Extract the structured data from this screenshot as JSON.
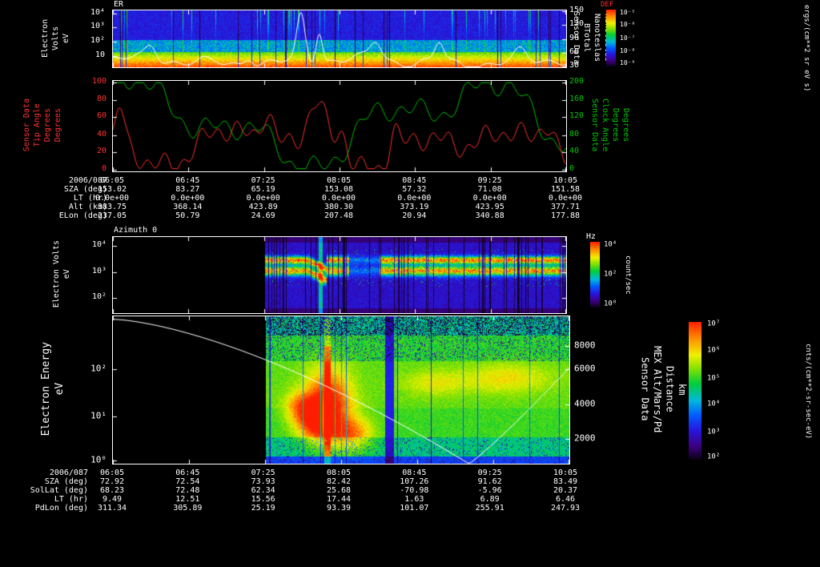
{
  "panels": {
    "er": {
      "title": "ER",
      "left_axis": {
        "label": "Electron Volts\neV",
        "ticks": [
          "10⁴",
          "10³",
          "10²",
          "10"
        ],
        "fracs": [
          0.05,
          0.3,
          0.55,
          0.8
        ]
      },
      "right_axis": {
        "label": "Sensor Data\nBTotal\nNanoteslas\nNanoteslas",
        "ticks": [
          "150",
          "120",
          "90",
          "60",
          "30"
        ],
        "fracs": [
          0.02,
          0.26,
          0.5,
          0.74,
          0.98
        ]
      },
      "colorbar": {
        "title": "DEF",
        "ticks": [
          "10⁻⁵",
          "10⁻⁶",
          "10⁻⁷",
          "10⁻⁸",
          "10⁻⁹"
        ],
        "fracs": [
          0.05,
          0.27,
          0.5,
          0.73,
          0.95
        ],
        "unit": "ergs/(cm**2 sr eV s)"
      }
    },
    "angles": {
      "left_axis": {
        "label": "Sensor Data\nTip Angle\nDegrees\nDegrees",
        "ticks": [
          "100",
          "80",
          "60",
          "40",
          "20",
          "0"
        ],
        "fracs": [
          0.02,
          0.21,
          0.4,
          0.6,
          0.79,
          0.98
        ]
      },
      "right_axis": {
        "label": "Sensor Data\nClock Angle\nDegrees\nDegrees",
        "ticks": [
          "200",
          "160",
          "120",
          "80",
          "40",
          "0"
        ],
        "fracs": [
          0.02,
          0.21,
          0.4,
          0.6,
          0.79,
          0.98
        ]
      }
    },
    "azimuth": {
      "title": "Azimuth 0",
      "left_axis": {
        "label": "Electron Volts\neV",
        "ticks": [
          "10⁴",
          "10³",
          "10²"
        ],
        "fracs": [
          0.12,
          0.46,
          0.8
        ]
      },
      "colorbar": {
        "title": "Hz",
        "ticks": [
          "10⁴",
          "10²",
          "10⁰"
        ],
        "fracs": [
          0.05,
          0.5,
          0.95
        ],
        "unit": "count/sec"
      }
    },
    "energy": {
      "left_axis": {
        "label": "Electron Energy\neV",
        "ticks": [
          "10²",
          "10¹",
          "10⁰"
        ],
        "fracs": [
          0.36,
          0.68,
          0.98
        ]
      },
      "right_axis": {
        "label": "Sensor Data\nMEX Alt/Mars/Pd\nDistance\nkm",
        "ticks": [
          "8000",
          "6000",
          "4000",
          "2000"
        ],
        "fracs": [
          0.2,
          0.36,
          0.6,
          0.83
        ]
      },
      "colorbar": {
        "ticks": [
          "10⁷",
          "10⁶",
          "10⁵",
          "10⁴",
          "10³",
          "10²"
        ],
        "fracs": [
          0.02,
          0.21,
          0.41,
          0.6,
          0.8,
          0.98
        ],
        "unit": "cnts/(cm**2-sr-sec-eV)"
      }
    }
  },
  "table1": {
    "date": "2006/087",
    "times": [
      "06:05",
      "06:45",
      "07:25",
      "08:05",
      "08:45",
      "09:25",
      "10:05"
    ],
    "rows": [
      {
        "label": "SZA (deg)",
        "values": [
          "153.02",
          "83.27",
          "65.19",
          "153.08",
          "57.32",
          "71.08",
          "151.58"
        ]
      },
      {
        "label": "LT (hr)",
        "values": [
          "0.0e+00",
          "0.0e+00",
          "0.0e+00",
          "0.0e+00",
          "0.0e+00",
          "0.0e+00",
          "0.0e+00"
        ]
      },
      {
        "label": "Alt (km)",
        "values": [
          "383.75",
          "368.14",
          "423.89",
          "380.30",
          "373.19",
          "423.95",
          "377.71"
        ]
      },
      {
        "label": "ELon (deg)",
        "values": [
          "237.05",
          "50.79",
          "24.69",
          "207.48",
          "20.94",
          "340.88",
          "177.88"
        ]
      }
    ]
  },
  "table2": {
    "date": "2006/087",
    "times": [
      "06:05",
      "06:45",
      "07:25",
      "08:05",
      "08:45",
      "09:25",
      "10:05"
    ],
    "rows": [
      {
        "label": "SZA (deg)",
        "values": [
          "72.92",
          "72.54",
          "73.93",
          "82.42",
          "107.26",
          "91.62",
          "83.49"
        ]
      },
      {
        "label": "SolLat (deg)",
        "values": [
          "68.23",
          "72.48",
          "62.34",
          "25.68",
          "-70.98",
          "-5.96",
          "20.37"
        ]
      },
      {
        "label": "LT (hr)",
        "values": [
          "9.49",
          "12.51",
          "15.56",
          "17.44",
          "1.63",
          "6.89",
          "6.46"
        ]
      },
      {
        "label": "PdLon (deg)",
        "values": [
          "311.34",
          "305.89",
          "25.19",
          "93.39",
          "101.07",
          "255.91",
          "247.93"
        ]
      }
    ]
  },
  "chart_data": [
    {
      "type": "heatmap",
      "title": "ER",
      "x_axis": {
        "label": "Time 2006/087",
        "ticks": [
          "06:05",
          "06:45",
          "07:25",
          "08:05",
          "08:45",
          "09:25",
          "10:05"
        ]
      },
      "y_axis": {
        "label": "Electron Volts eV",
        "scale": "log",
        "ticks": [
          10000,
          1000,
          100,
          10
        ]
      },
      "colorbar": {
        "label": "DEF",
        "units": "ergs/(cm**2 sr eV s)",
        "ticks": [
          "1e-5",
          "1e-6",
          "1e-7",
          "1e-8",
          "1e-9"
        ]
      },
      "overlay_series": {
        "name": "BTotal (Nanoteslas)",
        "y_range": [
          30,
          150
        ],
        "approx_values_at_ticks": [
          45,
          42,
          46,
          140,
          46,
          50,
          40
        ]
      },
      "description": "Electron energy-flux spectrogram: high flux (yellow/red) below ~100 eV, blue/purple at higher energies, intermittent dark dropout columns; white overlaid trace is total magnetic field with large spikes near 08:00."
    },
    {
      "type": "line",
      "x_axis": {
        "ticks": [
          "06:05",
          "06:45",
          "07:25",
          "08:05",
          "08:45",
          "09:25",
          "10:05"
        ]
      },
      "series": [
        {
          "name": "Tip Angle (Degrees)",
          "color": "#ff3232",
          "y_range": [
            0,
            100
          ],
          "approx_values_at_ticks": [
            20,
            30,
            20,
            45,
            20,
            10,
            35
          ]
        },
        {
          "name": "Clock Angle (Degrees)",
          "color": "#00c800",
          "y_range": [
            0,
            200
          ],
          "approx_values_at_ticks": [
            40,
            160,
            150,
            60,
            170,
            120,
            40
          ]
        }
      ],
      "description": "Highly variable angle time series; clock angle (green) oscillates over most of 0-200 range, tip angle (red) mostly low with spikes mid-interval."
    },
    {
      "type": "heatmap",
      "title": "Azimuth 0",
      "x_axis": {
        "ticks": [
          "06:05",
          "06:45",
          "07:25",
          "08:05",
          "08:45",
          "09:25",
          "10:05"
        ]
      },
      "y_axis": {
        "label": "Electron Volts eV",
        "scale": "log",
        "ticks": [
          10000,
          1000,
          100
        ]
      },
      "colorbar": {
        "label": "Hz",
        "units": "count/sec",
        "ticks": [
          "1e4",
          "1e2",
          "1e0"
        ]
      },
      "description": "Count-rate spectrogram; data begin ~07:25. Bright red/yellow horizontal bands near 10^3 eV over blue/indigo background with many vertical dark dropouts and a gap near 08:40."
    },
    {
      "type": "heatmap",
      "x_axis": {
        "ticks": [
          "06:05",
          "06:45",
          "07:25",
          "08:05",
          "08:45",
          "09:25",
          "10:05"
        ]
      },
      "y_axis": {
        "label": "Electron Energy eV",
        "scale": "log",
        "ticks": [
          100,
          10,
          1
        ]
      },
      "right_axis": {
        "label": "MEX Alt/Mars/Pd Distance km",
        "ticks": [
          8000,
          6000,
          4000,
          2000
        ]
      },
      "colorbar": {
        "units": "cnts/(cm**2-sr-sec-eV)",
        "ticks": [
          "1e7",
          "1e6",
          "1e5",
          "1e4",
          "1e3",
          "1e2"
        ]
      },
      "overlay_series": {
        "name": "MEX distance (km)",
        "approx_values_at_ticks": [
          9700,
          8790,
          7090,
          4920,
          2320,
          1690,
          6570
        ]
      },
      "description": "Electron counts spectrogram; data begin ~07:25. Broad green/yellow flux with red enhancements near periapsis ~08:05-08:45, bright vertical column near 08:00, dark speckling at high energy. White curve is spacecraft distance, minimum near 09:10."
    }
  ]
}
